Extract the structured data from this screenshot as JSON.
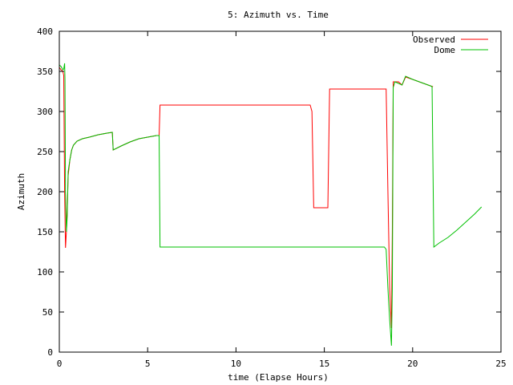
{
  "chart_data": {
    "type": "line",
    "title": "5: Azimuth vs. Time",
    "xlabel": "time (Elapse Hours)",
    "ylabel": "Azimuth",
    "xlim": [
      0,
      25
    ],
    "ylim": [
      0,
      400
    ],
    "xticks": [
      0,
      5,
      10,
      15,
      20,
      25
    ],
    "yticks": [
      0,
      50,
      100,
      150,
      200,
      250,
      300,
      350,
      400
    ],
    "grid": false,
    "legend_position": "top-right",
    "series": [
      {
        "name": "Observed",
        "color": "#ff0000",
        "points": [
          [
            0,
            355
          ],
          [
            0.1,
            352
          ],
          [
            0.2,
            350
          ],
          [
            0.25,
            345
          ],
          [
            0.3,
            200
          ],
          [
            0.35,
            130
          ],
          [
            0.4,
            150
          ],
          [
            0.45,
            180
          ],
          [
            0.5,
            220
          ],
          [
            0.6,
            240
          ],
          [
            0.7,
            252
          ],
          [
            0.8,
            258
          ],
          [
            1.0,
            263
          ],
          [
            1.3,
            266
          ],
          [
            1.7,
            268
          ],
          [
            2.2,
            271
          ],
          [
            2.7,
            273
          ],
          [
            3.0,
            274
          ],
          [
            3.05,
            252
          ],
          [
            3.5,
            257
          ],
          [
            4.0,
            262
          ],
          [
            4.5,
            266
          ],
          [
            5.0,
            268
          ],
          [
            5.5,
            270
          ],
          [
            5.65,
            270
          ],
          [
            5.7,
            308
          ],
          [
            10.0,
            308
          ],
          [
            14.2,
            308
          ],
          [
            14.3,
            300
          ],
          [
            14.4,
            180
          ],
          [
            15.2,
            180
          ],
          [
            15.3,
            328
          ],
          [
            18.2,
            328
          ],
          [
            18.5,
            328
          ],
          [
            18.6,
            200
          ],
          [
            18.7,
            80
          ],
          [
            18.8,
            30
          ],
          [
            18.85,
            150
          ],
          [
            18.9,
            337
          ],
          [
            19.2,
            337
          ],
          [
            19.4,
            333
          ],
          [
            19.6,
            343
          ],
          [
            20.0,
            340
          ],
          [
            20.5,
            336
          ],
          [
            21.0,
            332
          ],
          [
            21.15,
            331
          ]
        ]
      },
      {
        "name": "Dome",
        "color": "#00c000",
        "points": [
          [
            0,
            358
          ],
          [
            0.1,
            356
          ],
          [
            0.2,
            352
          ],
          [
            0.25,
            353
          ],
          [
            0.3,
            360
          ],
          [
            0.32,
            340
          ],
          [
            0.35,
            200
          ],
          [
            0.4,
            150
          ],
          [
            0.45,
            170
          ],
          [
            0.5,
            225
          ],
          [
            0.6,
            240
          ],
          [
            0.7,
            252
          ],
          [
            0.8,
            258
          ],
          [
            1.0,
            263
          ],
          [
            1.3,
            266
          ],
          [
            1.7,
            268
          ],
          [
            2.2,
            271
          ],
          [
            2.7,
            273
          ],
          [
            3.0,
            274
          ],
          [
            3.05,
            252
          ],
          [
            3.5,
            257
          ],
          [
            4.0,
            262
          ],
          [
            4.5,
            266
          ],
          [
            5.0,
            268
          ],
          [
            5.5,
            270
          ],
          [
            5.65,
            270
          ],
          [
            5.7,
            131
          ],
          [
            10.0,
            131
          ],
          [
            14.0,
            131
          ],
          [
            18.4,
            131
          ],
          [
            18.5,
            128
          ],
          [
            18.6,
            80
          ],
          [
            18.7,
            40
          ],
          [
            18.8,
            8
          ],
          [
            18.85,
            80
          ],
          [
            18.9,
            330
          ],
          [
            19.0,
            337
          ],
          [
            19.2,
            335
          ],
          [
            19.4,
            333
          ],
          [
            19.6,
            344
          ],
          [
            20.0,
            340
          ],
          [
            20.5,
            336
          ],
          [
            21.0,
            332
          ],
          [
            21.1,
            331
          ],
          [
            21.2,
            131
          ],
          [
            21.5,
            136
          ],
          [
            22.0,
            143
          ],
          [
            22.5,
            152
          ],
          [
            23.0,
            162
          ],
          [
            23.5,
            172
          ],
          [
            23.9,
            181
          ]
        ]
      }
    ]
  }
}
